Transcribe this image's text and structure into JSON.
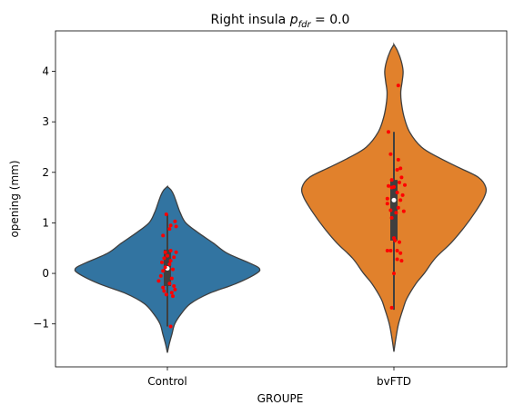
{
  "chart_data": {
    "type": "violin",
    "title_main": "Right insula ",
    "title_symbol": "p",
    "title_subscript": "fdr",
    "title_value": " = 0.0",
    "xlabel": "GROUPE",
    "ylabel": "opening (mm)",
    "categories": [
      "Control",
      "bvFTD"
    ],
    "colors": [
      "#3274a1",
      "#e1812c"
    ],
    "point_color": "#ff0000",
    "ylim": [
      -1.85,
      4.8
    ],
    "yticks": [
      -1,
      0,
      1,
      2,
      3,
      4
    ],
    "ytick_labels": [
      "−1",
      "0",
      "1",
      "2",
      "3",
      "4"
    ],
    "grid": false,
    "legend": "none",
    "violins": [
      {
        "name": "Control",
        "density": [
          [
            -1.57,
            0.0
          ],
          [
            -1.4,
            0.02
          ],
          [
            -1.2,
            0.05
          ],
          [
            -1.0,
            0.08
          ],
          [
            -0.8,
            0.15
          ],
          [
            -0.6,
            0.25
          ],
          [
            -0.4,
            0.45
          ],
          [
            -0.2,
            0.75
          ],
          [
            0.0,
            0.97
          ],
          [
            0.1,
            1.0
          ],
          [
            0.2,
            0.9
          ],
          [
            0.4,
            0.65
          ],
          [
            0.6,
            0.5
          ],
          [
            0.8,
            0.34
          ],
          [
            1.0,
            0.2
          ],
          [
            1.2,
            0.14
          ],
          [
            1.4,
            0.1
          ],
          [
            1.55,
            0.07
          ],
          [
            1.65,
            0.04
          ],
          [
            1.72,
            0.0
          ]
        ],
        "box": {
          "whisker_low": -1.05,
          "q1": -0.25,
          "median": 0.1,
          "q3": 0.47,
          "whisker_high": 1.17
        },
        "points": [
          [
            -0.01,
            1.17
          ],
          [
            0.07,
            1.03
          ],
          [
            0.08,
            0.93
          ],
          [
            0.03,
            0.95
          ],
          [
            0.02,
            0.88
          ],
          [
            -0.04,
            0.75
          ],
          [
            0.03,
            0.45
          ],
          [
            0.08,
            0.42
          ],
          [
            -0.02,
            0.42
          ],
          [
            0.0,
            0.35
          ],
          [
            -0.03,
            0.3
          ],
          [
            0.06,
            0.32
          ],
          [
            0.03,
            0.25
          ],
          [
            -0.05,
            0.22
          ],
          [
            0.02,
            0.18
          ],
          [
            -0.02,
            0.12
          ],
          [
            0.05,
            0.08
          ],
          [
            -0.04,
            0.05
          ],
          [
            -0.06,
            -0.05
          ],
          [
            0.04,
            -0.1
          ],
          [
            -0.08,
            -0.15
          ],
          [
            0.02,
            -0.2
          ],
          [
            0.06,
            -0.25
          ],
          [
            -0.04,
            -0.28
          ],
          [
            0.07,
            -0.32
          ],
          [
            -0.03,
            -0.35
          ],
          [
            0.04,
            -0.38
          ],
          [
            -0.01,
            -0.42
          ],
          [
            0.05,
            -0.45
          ],
          [
            0.03,
            -1.05
          ]
        ]
      },
      {
        "name": "bvFTD",
        "density": [
          [
            -1.55,
            0.0
          ],
          [
            -1.3,
            0.02
          ],
          [
            -1.0,
            0.05
          ],
          [
            -0.7,
            0.1
          ],
          [
            -0.5,
            0.14
          ],
          [
            -0.2,
            0.24
          ],
          [
            0.0,
            0.33
          ],
          [
            0.3,
            0.45
          ],
          [
            0.6,
            0.62
          ],
          [
            0.9,
            0.76
          ],
          [
            1.2,
            0.88
          ],
          [
            1.5,
            0.98
          ],
          [
            1.7,
            1.0
          ],
          [
            1.9,
            0.92
          ],
          [
            2.1,
            0.7
          ],
          [
            2.3,
            0.48
          ],
          [
            2.5,
            0.3
          ],
          [
            2.8,
            0.17
          ],
          [
            3.1,
            0.11
          ],
          [
            3.4,
            0.08
          ],
          [
            3.6,
            0.075
          ],
          [
            3.8,
            0.09
          ],
          [
            4.0,
            0.1
          ],
          [
            4.2,
            0.08
          ],
          [
            4.4,
            0.04
          ],
          [
            4.53,
            0.0
          ]
        ],
        "box": {
          "whisker_low": -0.72,
          "q1": 0.65,
          "median": 1.45,
          "q3": 1.85,
          "whisker_high": 2.8
        },
        "points": [
          [
            0.04,
            3.72
          ],
          [
            -0.05,
            2.8
          ],
          [
            -0.03,
            2.36
          ],
          [
            0.04,
            2.25
          ],
          [
            0.06,
            2.08
          ],
          [
            0.03,
            2.05
          ],
          [
            -0.02,
            1.85
          ],
          [
            0.07,
            1.9
          ],
          [
            0.1,
            1.75
          ],
          [
            0.05,
            1.8
          ],
          [
            -0.05,
            1.73
          ],
          [
            0.0,
            1.71
          ],
          [
            -0.02,
            1.7
          ],
          [
            0.03,
            1.6
          ],
          [
            0.08,
            1.55
          ],
          [
            0.06,
            1.45
          ],
          [
            -0.06,
            1.48
          ],
          [
            -0.06,
            1.38
          ],
          [
            0.04,
            1.3
          ],
          [
            -0.03,
            1.25
          ],
          [
            0.09,
            1.23
          ],
          [
            0.02,
            1.2
          ],
          [
            -0.02,
            1.1
          ],
          [
            0.0,
            0.7
          ],
          [
            0.01,
            0.65
          ],
          [
            0.05,
            0.62
          ],
          [
            -0.06,
            0.45
          ],
          [
            -0.03,
            0.45
          ],
          [
            0.03,
            0.45
          ],
          [
            0.06,
            0.4
          ],
          [
            0.03,
            0.28
          ],
          [
            0.07,
            0.25
          ],
          [
            0.0,
            0.0
          ],
          [
            -0.02,
            -0.68
          ]
        ]
      }
    ]
  }
}
